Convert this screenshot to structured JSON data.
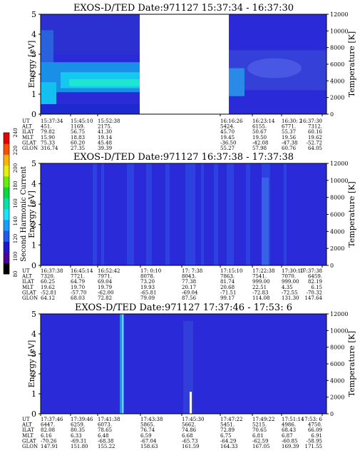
{
  "figure": {
    "colorbar": {
      "label": "Second Harmonic Current",
      "ticks": [
        80,
        100,
        120,
        140,
        160,
        180,
        200,
        220,
        240
      ],
      "colors": [
        "#000000",
        "#4b00a0",
        "#1e14d2",
        "#1e5af0",
        "#14a0ff",
        "#14e6ff",
        "#00e6aa",
        "#00dc3c",
        "#64f000",
        "#e6f000",
        "#ffb400",
        "#ff5000",
        "#e60000"
      ]
    },
    "background_color": "#2a2ad8"
  },
  "chart_data": [
    {
      "type": "heatmap",
      "title": "EXOS-D/TED   Date:971127   15:37:34 - 16:37:30",
      "ylabel": "Energy [eV]",
      "y2label": "Temperature [K]",
      "ylim": [
        0,
        5
      ],
      "y2lim": [
        0,
        12000
      ],
      "yticks": [
        0,
        1,
        2,
        3,
        4,
        5
      ],
      "y2ticks": [
        0,
        2000,
        4000,
        6000,
        8000,
        10000,
        12000
      ],
      "data_gap": [
        "15:52:38",
        "16:16:26"
      ],
      "param_labels": [
        "UT",
        "ALT",
        "ILAT",
        "MLT",
        "GLAT",
        "GLON"
      ],
      "columns": [
        {
          "UT": "15:37:34",
          "ALT": "451.",
          "ILAT": "79.82",
          "MLT": "15.90",
          "GLAT": "75.33",
          "GLON": "316.74"
        },
        {
          "UT": "15:45:10",
          "ALT": "1169.",
          "ILAT": "56.75",
          "MLT": "18.83",
          "GLAT": "60.20",
          "GLON": "27.35"
        },
        {
          "UT": "15:52:38",
          "ALT": "2175.",
          "ILAT": "41.30",
          "MLT": "19.14",
          "GLAT": "45.48",
          "GLON": "39.39"
        },
        {
          "UT": "",
          "ALT": "",
          "ILAT": "",
          "MLT": "",
          "GLAT": "",
          "GLON": ""
        },
        {
          "UT": "",
          "ALT": "",
          "ILAT": "",
          "MLT": "",
          "GLAT": "",
          "GLON": ""
        },
        {
          "UT": "16:16:26",
          "ALT": "5424.",
          "ILAT": "45.70",
          "MLT": "19.45",
          "GLAT": "-36.50",
          "GLON": "55.27"
        },
        {
          "UT": "16:23:14",
          "ALT": "6155.",
          "ILAT": "50.67",
          "MLT": "19.50",
          "GLAT": "-42.08",
          "GLON": "57.98"
        },
        {
          "UT": "16:30: 2",
          "ALT": "6771.",
          "ILAT": "55.37",
          "MLT": "19.56",
          "GLAT": "-47.38",
          "GLON": "60.76"
        },
        {
          "UT": "16:37:30",
          "ALT": "7312.",
          "ILAT": "60.16",
          "MLT": "19.62",
          "GLAT": "-52.72",
          "GLON": "64.05"
        }
      ]
    },
    {
      "type": "heatmap",
      "title": "EXOS-D/TED   Date:971127   16:37:38 - 17:37:38",
      "ylabel": "Energy [eV]",
      "y2label": "Temperature [K]",
      "ylim": [
        0,
        5
      ],
      "y2lim": [
        0,
        12000
      ],
      "yticks": [
        0,
        1,
        2,
        3,
        4,
        5
      ],
      "y2ticks": [
        0,
        2000,
        4000,
        6000,
        8000,
        10000,
        12000
      ],
      "param_labels": [
        "UT",
        "ALT",
        "ILAT",
        "MLT",
        "GLAT",
        "GLON"
      ],
      "columns": [
        {
          "UT": "16:37:38",
          "ALT": "7320.",
          "ILAT": "60.25",
          "MLT": "19.62",
          "GLAT": "-52.81",
          "GLON": "64.12"
        },
        {
          "UT": "16:45:14",
          "ALT": "7721.",
          "ILAT": "64.79",
          "MLT": "19.70",
          "GLAT": "-57.70",
          "GLON": "68.03"
        },
        {
          "UT": "16:52:42",
          "ALT": "7971.",
          "ILAT": "69.04",
          "MLT": "19.79",
          "GLAT": "-62.00",
          "GLON": "72.82"
        },
        {
          "UT": "17: 0:10",
          "ALT": "8078.",
          "ILAT": "73.20",
          "MLT": "19.93",
          "GLAT": "-65.81",
          "GLON": "79.09"
        },
        {
          "UT": "17: 7:38",
          "ALT": "8043.",
          "ILAT": "77.38",
          "MLT": "20.17",
          "GLAT": "-69.04",
          "GLON": "87.56"
        },
        {
          "UT": "17:15:10",
          "ALT": "7863.",
          "ILAT": "81.74",
          "MLT": "20.68",
          "GLAT": "-71.51",
          "GLON": "99.17"
        },
        {
          "UT": "17:22:38",
          "ALT": "7541.",
          "ILAT": "999.00",
          "MLT": "22.51",
          "GLAT": "-72.83",
          "GLON": "114.08"
        },
        {
          "UT": "17:30:10",
          "ALT": "7070.",
          "ILAT": "999.00",
          "MLT": "4.35",
          "GLAT": "-72.55",
          "GLON": "131.30"
        },
        {
          "UT": "17:37:38",
          "ALT": "6459.",
          "ILAT": "82.19",
          "MLT": "6.15",
          "GLAT": "-70.32",
          "GLON": "147.64"
        }
      ]
    },
    {
      "type": "heatmap",
      "title": "EXOS-D/TED   Date:971127   17:37:46 - 17:53: 6",
      "ylabel": "Energy [eV]",
      "y2label": "Temperature [K]",
      "ylim": [
        0,
        5
      ],
      "y2lim": [
        0,
        12000
      ],
      "yticks": [
        0,
        1,
        2,
        3,
        4,
        5
      ],
      "y2ticks": [
        0,
        2000,
        4000,
        6000,
        8000,
        10000,
        12000
      ],
      "param_labels": [
        "UT",
        "ALT",
        "ILAT",
        "MLT",
        "GLAT",
        "GLON"
      ],
      "columns": [
        {
          "UT": "17:37:46",
          "ALT": "6447.",
          "ILAT": "82.08",
          "MLT": "6.16",
          "GLAT": "-70.26",
          "GLON": "147.91"
        },
        {
          "UT": "17:39:46",
          "ALT": "6259.",
          "ILAT": "80.35",
          "MLT": "6.33",
          "GLAT": "-69.31",
          "GLON": "151.80"
        },
        {
          "UT": "17:41:38",
          "ALT": "6073.",
          "ILAT": "78.65",
          "MLT": "6.48",
          "GLAT": "-68.38",
          "GLON": "155.22"
        },
        {
          "UT": "17:43:38",
          "ALT": "5865.",
          "ILAT": "76.74",
          "MLT": "6.59",
          "GLAT": "-67.04",
          "GLON": "158.63"
        },
        {
          "UT": "17:45:30",
          "ALT": "5662.",
          "ILAT": "74.86",
          "MLT": "6.68",
          "GLAT": "-65.73",
          "GLON": "161.59"
        },
        {
          "UT": "17:47:22",
          "ALT": "5451.",
          "ILAT": "72.89",
          "MLT": "6.75",
          "GLAT": "-64.29",
          "GLON": "164.33"
        },
        {
          "UT": "17:49:22",
          "ALT": "5215.",
          "ILAT": "70.65",
          "MLT": "6.81",
          "GLAT": "-62.59",
          "GLON": "167.05"
        },
        {
          "UT": "17:51:14",
          "ALT": "4986.",
          "ILAT": "68.43",
          "MLT": "6.87",
          "GLAT": "-60.85",
          "GLON": "169.39"
        },
        {
          "UT": "17:53: 6",
          "ALT": "4750.",
          "ILAT": "66.09",
          "MLT": "6.91",
          "GLAT": "-58.95",
          "GLON": "171.55"
        }
      ]
    }
  ]
}
